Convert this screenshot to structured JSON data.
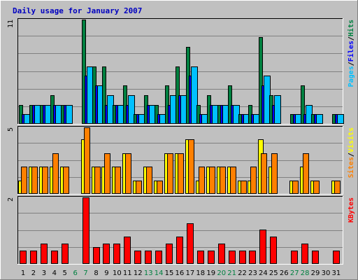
{
  "chart_data": {
    "type": "bar",
    "title": "Daily usage for January 2007",
    "days": [
      "1",
      "2",
      "3",
      "4",
      "5",
      "6",
      "7",
      "8",
      "9",
      "10",
      "11",
      "12",
      "13",
      "14",
      "15",
      "16",
      "17",
      "18",
      "19",
      "20",
      "21",
      "22",
      "23",
      "24",
      "25",
      "26",
      "27",
      "28",
      "29",
      "30",
      "31"
    ],
    "weekend_days": [
      "6",
      "7",
      "13",
      "14",
      "20",
      "21",
      "27",
      "28"
    ],
    "colors": {
      "hits": "#008040",
      "files": "#0000ff",
      "pages": "#00c0ff",
      "visits": "#ffff00",
      "sites": "#ff8000",
      "kbytes": "#ff0000",
      "title": "#0000c0",
      "weekday_label": "#000000",
      "weekend_label": "#008040"
    },
    "panels": [
      {
        "id": "hits",
        "axis_max_label": "11",
        "ylim": [
          0,
          11
        ],
        "legend": [
          {
            "text": "Pages",
            "color_key": "pages"
          },
          {
            "text": "/",
            "color_key": "weekday_label"
          },
          {
            "text": "Files",
            "color_key": "files"
          },
          {
            "text": "/",
            "color_key": "weekday_label"
          },
          {
            "text": "Hits",
            "color_key": "hits"
          }
        ],
        "series": [
          {
            "name": "Hits",
            "color_key": "hits",
            "values": [
              2,
              2,
              2,
              3,
              2,
              0,
              11,
              6,
              6,
              2,
              4,
              1,
              3,
              2,
              4,
              6,
              8,
              2,
              3,
              2,
              4,
              1,
              2,
              9,
              3,
              0,
              1,
              4,
              1,
              0,
              1
            ]
          },
          {
            "name": "Files",
            "color_key": "files",
            "values": [
              1,
              2,
              2,
              2,
              2,
              0,
              5,
              4,
              2,
              2,
              2,
              1,
              2,
              1,
              2,
              3,
              5,
              1,
              2,
              2,
              2,
              1,
              1,
              4,
              2,
              0,
              1,
              1,
              1,
              0,
              1
            ]
          },
          {
            "name": "Pages",
            "color_key": "pages",
            "values": [
              1,
              2,
              2,
              2,
              2,
              0,
              6,
              4,
              3,
              2,
              3,
              1,
              2,
              1,
              3,
              3,
              6,
              1,
              2,
              2,
              2,
              1,
              1,
              5,
              3,
              0,
              1,
              2,
              1,
              0,
              1
            ]
          }
        ]
      },
      {
        "id": "visits",
        "axis_max_label": "5",
        "ylim": [
          0,
          5
        ],
        "legend": [
          {
            "text": "Sites",
            "color_key": "sites"
          },
          {
            "text": "/",
            "color_key": "weekday_label"
          },
          {
            "text": "Visits",
            "color_key": "visits"
          }
        ],
        "series": [
          {
            "name": "Visits",
            "color_key": "visits",
            "values": [
              1,
              2,
              2,
              2,
              2,
              0,
              4,
              2,
              2,
              2,
              3,
              1,
              2,
              1,
              3,
              3,
              4,
              1,
              2,
              2,
              2,
              1,
              1,
              4,
              2,
              0,
              1,
              2,
              1,
              0,
              1
            ]
          },
          {
            "name": "Sites",
            "color_key": "sites",
            "values": [
              2,
              2,
              2,
              3,
              2,
              0,
              5,
              2,
              3,
              2,
              3,
              1,
              2,
              1,
              3,
              3,
              4,
              2,
              2,
              2,
              2,
              1,
              2,
              3,
              3,
              0,
              1,
              3,
              1,
              0,
              1
            ]
          }
        ]
      },
      {
        "id": "kbytes",
        "axis_max_label": "2",
        "ylim": [
          0,
          2
        ],
        "legend": [
          {
            "text": "KBytes",
            "color_key": "kbytes"
          }
        ],
        "series": [
          {
            "name": "KBytes",
            "color_key": "kbytes",
            "values": [
              0.4,
              0.4,
              0.6,
              0.4,
              0.6,
              0,
              2.0,
              0.5,
              0.6,
              0.6,
              0.8,
              0.4,
              0.4,
              0.4,
              0.6,
              0.8,
              1.2,
              0.4,
              0.4,
              0.6,
              0.4,
              0.4,
              0.4,
              1.0,
              0.8,
              0,
              0.4,
              0.6,
              0.4,
              0,
              0.4
            ]
          }
        ]
      }
    ]
  }
}
